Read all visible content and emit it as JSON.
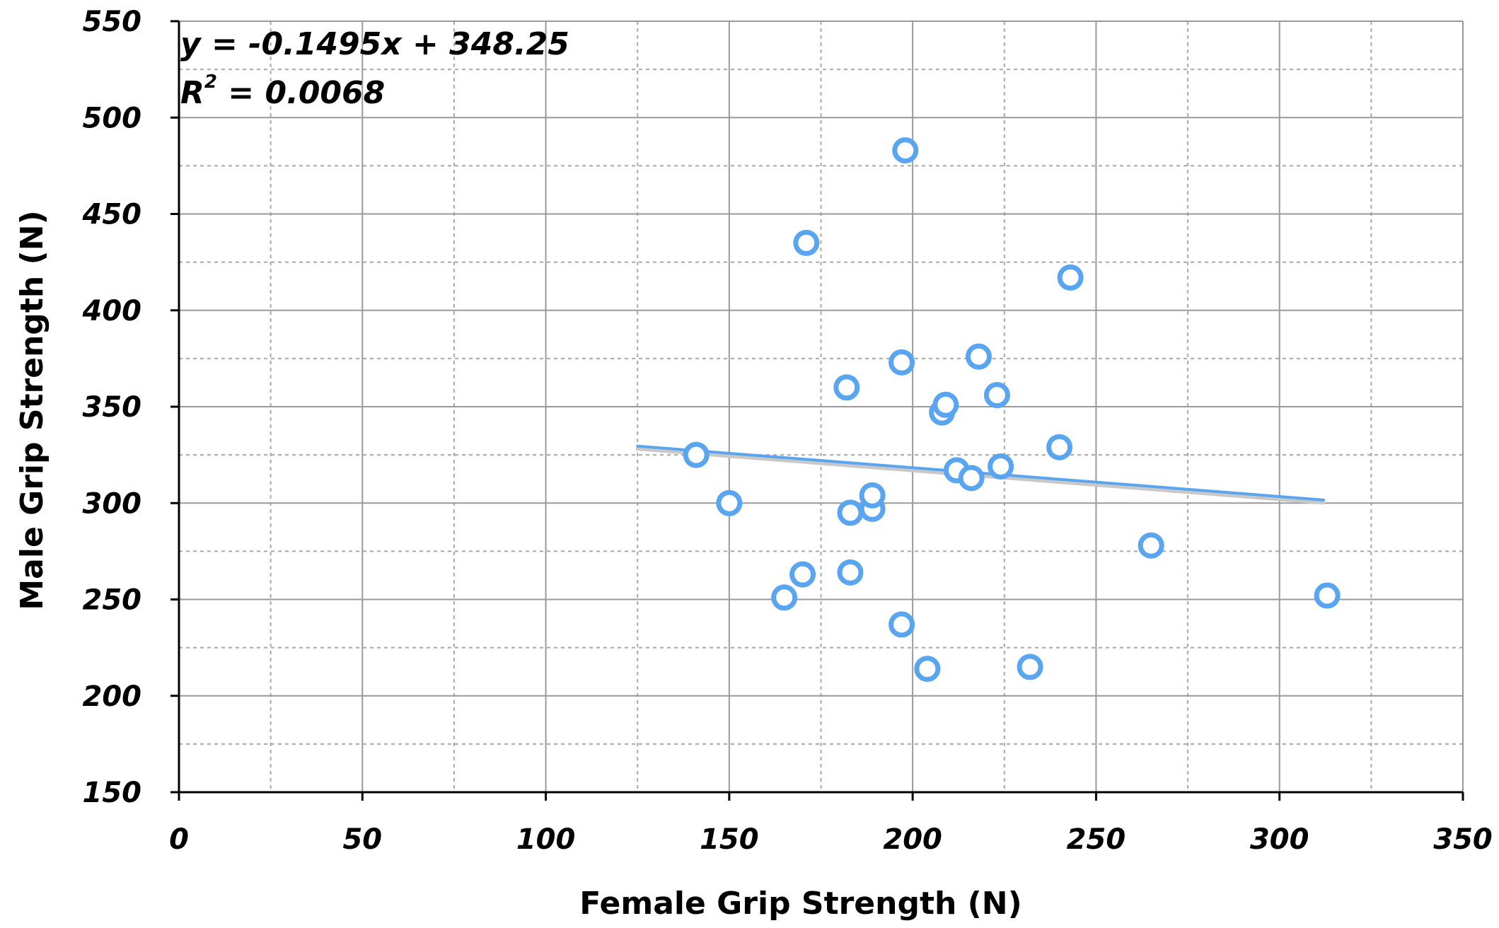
{
  "chart_data": {
    "type": "scatter",
    "xlabel": "Female Grip Strength (N)",
    "ylabel": "Male Grip Strength (N)",
    "xlim": [
      0,
      350
    ],
    "ylim": [
      150,
      550
    ],
    "x_major_ticks": [
      0,
      50,
      100,
      150,
      200,
      250,
      300,
      350
    ],
    "y_major_ticks": [
      150,
      200,
      250,
      300,
      350,
      400,
      450,
      500,
      550
    ],
    "x_minor_gridlines": [
      25,
      75,
      125,
      175,
      225,
      275,
      325
    ],
    "y_minor_gridlines": [
      175,
      225,
      275,
      325,
      375,
      425,
      475,
      525
    ],
    "grid": true,
    "legend": "none",
    "marker_color": "#5AA5F0",
    "series": [
      {
        "x": [
          141,
          150,
          165,
          170,
          171,
          182,
          183,
          183,
          189,
          189,
          197,
          197,
          198,
          204,
          208,
          209,
          212,
          216,
          218,
          223,
          224,
          232,
          240,
          243,
          265,
          313
        ],
        "y": [
          325,
          300,
          251,
          263,
          435,
          360,
          295,
          264,
          297,
          304,
          237,
          373,
          483,
          214,
          347,
          351,
          317,
          313,
          376,
          356,
          319,
          215,
          329,
          417,
          278,
          252
        ]
      }
    ],
    "trendline": {
      "slope": -0.1495,
      "intercept": 348.25,
      "x_range": [
        125,
        312
      ],
      "color": "#5AA5F0",
      "equation_label": "y = -0.1495x + 348.25",
      "r2_prefix": "R",
      "r2_sup": "2",
      "r2_value": " = 0.0068"
    }
  }
}
